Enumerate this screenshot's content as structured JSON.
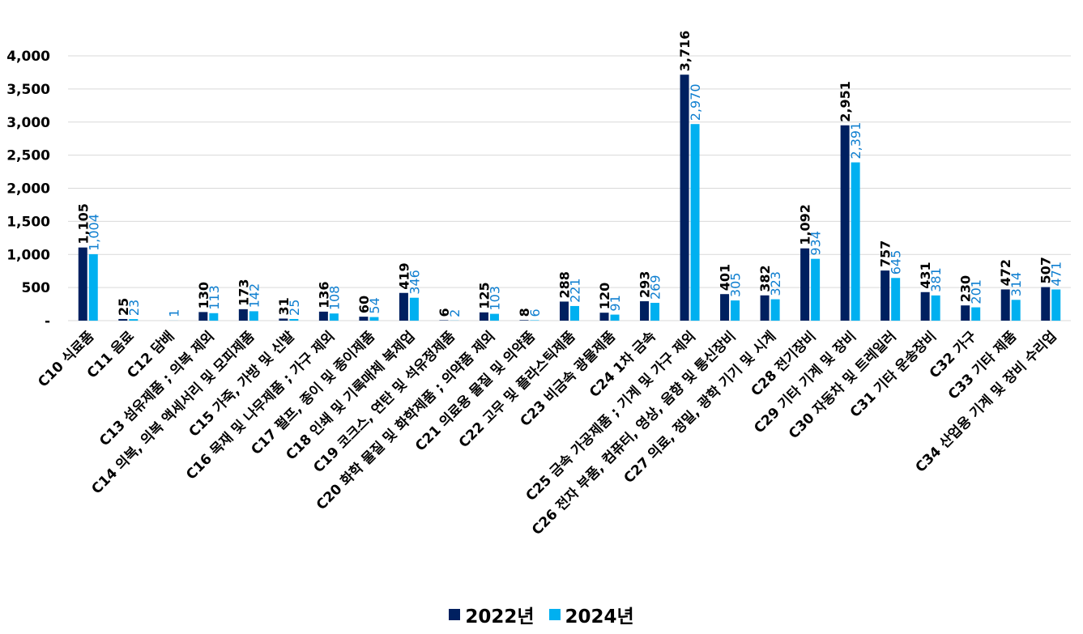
{
  "chart_data": {
    "type": "bar",
    "categories": [
      "C10 식료품",
      "C11 음료",
      "C12 담배",
      "C13 섬유제품 ; 의복 제외",
      "C14 의복, 의복 액세서리 및 모피제품",
      "C15 가죽, 가방 및 신발",
      "C16 목재 및 나무제품 ; 가구 제외",
      "C17 펄프, 종이 및 종이제품",
      "C18 인쇄 및 기록매체 복제업",
      "C19 코크스, 연탄 및 석유정제품",
      "C20 화학 물질 및 화학제품 ; 의약품 제외",
      "C21 의료용 물질 및 의약품",
      "C22 고무 및 플라스틱제품",
      "C23 비금속 광물제품",
      "C24 1차 금속",
      "C25 금속 가공제품 ; 기계 및 가구 제외",
      "C26 전자 부품, 컴퓨터, 영상, 음향 및 통신장비",
      "C27 의료, 정밀, 광학 기기 및 시계",
      "C28 전기장비",
      "C29 기타 기계 및 장비",
      "C30 자동차 및 트레일러",
      "C31 기타 운송장비",
      "C32 가구",
      "C33 기타 제품",
      "C34 산업용 기계 및 장비 수리업"
    ],
    "series": [
      {
        "name": "2022년",
        "color": "#002060",
        "values": [
          1105,
          25,
          0,
          130,
          173,
          31,
          136,
          60,
          419,
          6,
          125,
          8,
          288,
          120,
          293,
          3716,
          401,
          382,
          1092,
          2951,
          757,
          431,
          230,
          472,
          507
        ],
        "labels": [
          "1,105",
          "25",
          "",
          "130",
          "173",
          "31",
          "136",
          "60",
          "419",
          "6",
          "125",
          "8",
          "288",
          "120",
          "293",
          "3,716",
          "401",
          "382",
          "1,092",
          "2,951",
          "757",
          "431",
          "230",
          "472",
          "507"
        ]
      },
      {
        "name": "2024년",
        "color": "#00B0F0",
        "values": [
          1004,
          23,
          1,
          113,
          142,
          25,
          108,
          54,
          346,
          2,
          103,
          6,
          221,
          91,
          269,
          2970,
          305,
          323,
          934,
          2391,
          645,
          381,
          201,
          314,
          471
        ],
        "labels": [
          "1,004",
          "23",
          "1",
          "113",
          "142",
          "25",
          "108",
          "54",
          "346",
          "2",
          "103",
          "6",
          "221",
          "91",
          "269",
          "2,970",
          "305",
          "323",
          "934",
          "2,391",
          "645",
          "381",
          "201",
          "314",
          "471"
        ]
      }
    ],
    "ylim": [
      0,
      4000
    ],
    "yticks": [
      0,
      500,
      1000,
      1500,
      2000,
      2500,
      3000,
      3500,
      4000
    ],
    "ytick_labels": [
      "-",
      "500",
      "1,000",
      "1,500",
      "2,000",
      "2,500",
      "3,000",
      "3,500",
      "4,000"
    ],
    "grid": true,
    "legend_position": "bottom"
  }
}
